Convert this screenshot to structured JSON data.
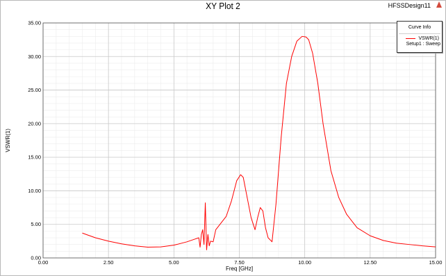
{
  "design_name": "HFSSDesign11",
  "logo_icon": "ansys-triangle-icon",
  "legend": {
    "header": "Curve Info",
    "entries": [
      {
        "name": "VSWR(1)",
        "setup": "Setup1 : Sweep",
        "color": "#ff0000"
      }
    ]
  },
  "chart_data": {
    "type": "line",
    "title": "XY Plot 2",
    "xlabel": "Freq [GHz]",
    "ylabel": "VSWR(1)",
    "xlim": [
      0,
      15
    ],
    "ylim": [
      0,
      35
    ],
    "grid": true,
    "legend_position": "top-right",
    "x_ticks": [
      "0.00",
      "2.50",
      "5.00",
      "7.50",
      "10.00",
      "12.50",
      "15.00"
    ],
    "y_ticks": [
      "0.00",
      "5.00",
      "10.00",
      "15.00",
      "20.00",
      "25.00",
      "30.00",
      "35.00"
    ],
    "series": [
      {
        "name": "VSWR(1)",
        "color": "#ff0000",
        "x": [
          1.5,
          2.0,
          2.5,
          3.0,
          3.5,
          4.0,
          4.5,
          5.0,
          5.5,
          5.8,
          5.95,
          6.0,
          6.05,
          6.1,
          6.15,
          6.2,
          6.25,
          6.3,
          6.35,
          6.4,
          6.5,
          6.6,
          6.8,
          7.0,
          7.2,
          7.4,
          7.55,
          7.65,
          7.8,
          7.95,
          8.1,
          8.2,
          8.3,
          8.4,
          8.5,
          8.6,
          8.75,
          8.9,
          9.1,
          9.3,
          9.5,
          9.7,
          9.9,
          10.05,
          10.15,
          10.3,
          10.5,
          10.7,
          11.0,
          11.3,
          11.6,
          12.0,
          12.5,
          13.0,
          13.5,
          14.0,
          14.5,
          15.0
        ],
        "y": [
          3.7,
          3.0,
          2.5,
          2.1,
          1.8,
          1.6,
          1.65,
          1.9,
          2.4,
          2.8,
          3.0,
          1.6,
          3.5,
          4.2,
          2.0,
          8.2,
          1.2,
          3.5,
          1.8,
          2.5,
          2.4,
          4.2,
          5.2,
          6.2,
          8.5,
          11.5,
          12.4,
          12.0,
          9.0,
          6.0,
          4.2,
          6.0,
          7.5,
          7.0,
          4.5,
          3.0,
          2.4,
          8.0,
          18.0,
          26.0,
          30.0,
          32.3,
          33.0,
          32.9,
          32.5,
          30.5,
          26.0,
          20.0,
          13.0,
          9.0,
          6.5,
          4.5,
          3.3,
          2.6,
          2.2,
          2.0,
          1.8,
          1.65
        ]
      }
    ]
  }
}
